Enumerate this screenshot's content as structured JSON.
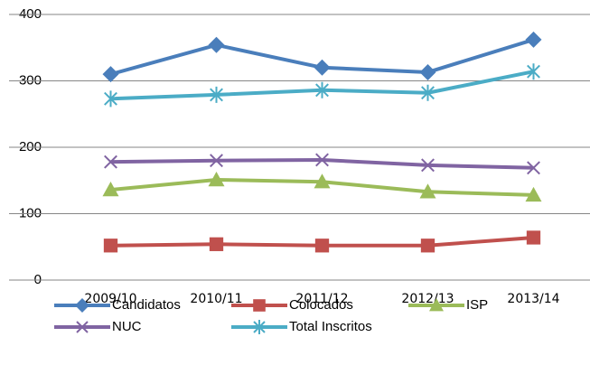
{
  "chart_data": {
    "type": "line",
    "categories": [
      "2009/10",
      "2010/11",
      "2011/12",
      "2012/13",
      "2013/14"
    ],
    "series": [
      {
        "name": "Candidatos",
        "color": "#4a7ebb",
        "marker": "diamond",
        "values": [
          310,
          354,
          320,
          313,
          362
        ]
      },
      {
        "name": "Colocados",
        "color": "#c0504d",
        "marker": "square",
        "values": [
          52,
          54,
          52,
          52,
          64
        ]
      },
      {
        "name": "ISP",
        "color": "#9bbb59",
        "marker": "triangle",
        "values": [
          136,
          151,
          148,
          133,
          128
        ]
      },
      {
        "name": "NUC",
        "color": "#8064a2",
        "marker": "x",
        "values": [
          178,
          180,
          181,
          173,
          169
        ]
      },
      {
        "name": "Total Inscritos",
        "color": "#4bacc6",
        "marker": "asterisk",
        "values": [
          273,
          279,
          286,
          282,
          314
        ]
      }
    ],
    "ylim": [
      0,
      400
    ],
    "yticks": [
      0,
      100,
      200,
      300,
      400
    ],
    "grid": true,
    "legend": "bottom"
  }
}
